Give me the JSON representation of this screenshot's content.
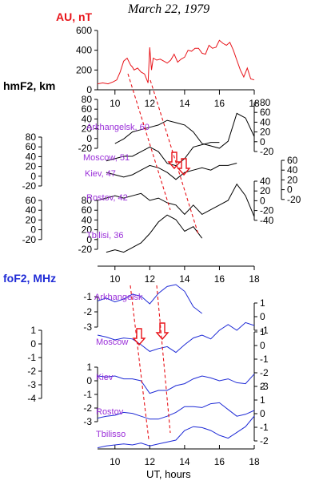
{
  "title": "March 22, 1979",
  "colors": {
    "au": "#e8141a",
    "hmf2": "#000000",
    "fof2": "#1f2bd6",
    "station_label": "#9b30d9",
    "hmf2_label": "#000000",
    "fof2_label": "#1f2bd6",
    "arrow": "#e8141a"
  },
  "chart_data": [
    {
      "type": "line",
      "panel": "AU",
      "ylabel": "AU, nT",
      "x_range": [
        9,
        18
      ],
      "ylim": [
        0,
        600
      ],
      "yticks": [
        0,
        200,
        400,
        600
      ],
      "series": [
        {
          "x": [
            9.0,
            9.3,
            9.6,
            9.9,
            10.1,
            10.3,
            10.5,
            10.7,
            10.9,
            11.0,
            11.1,
            11.3,
            11.5,
            11.7,
            11.9,
            12.0,
            12.1,
            12.2,
            12.4,
            12.6,
            12.8,
            13.0,
            13.2,
            13.4,
            13.6,
            13.8,
            14.0,
            14.2,
            14.4,
            14.6,
            14.8,
            15.0,
            15.2,
            15.4,
            15.6,
            15.8,
            16.0,
            16.2,
            16.4,
            16.6,
            16.8,
            17.0,
            17.2,
            17.4,
            17.6,
            17.8,
            18.0
          ],
          "values": [
            60,
            70,
            60,
            80,
            100,
            180,
            290,
            320,
            250,
            230,
            200,
            220,
            180,
            160,
            70,
            430,
            200,
            320,
            300,
            310,
            290,
            270,
            300,
            360,
            280,
            310,
            330,
            400,
            390,
            420,
            420,
            370,
            360,
            450,
            420,
            430,
            500,
            470,
            450,
            480,
            400,
            300,
            200,
            130,
            220,
            110,
            100
          ]
        }
      ]
    },
    {
      "type": "line",
      "panel": "hmF2",
      "ylabel": "hmF2, km",
      "x_range": [
        9,
        18
      ],
      "unit_scale": "20 km tick spacing",
      "stations": [
        {
          "name": "Arkhangelsk, 60",
          "left_ticks": [
            "80",
            "60",
            "40",
            "20",
            "0",
            "-20"
          ],
          "right_ticks": [
            "80",
            "60",
            "40",
            "20",
            "0",
            "-20"
          ],
          "x": [
            10.0,
            10.5,
            11.0,
            11.5,
            12.0,
            12.5,
            13.0,
            13.5,
            14.0,
            14.5,
            15.0,
            15.5,
            16.0,
            16.5,
            17.0,
            17.5,
            18.0
          ],
          "values": [
            5,
            15,
            30,
            35,
            40,
            45,
            55,
            50,
            45,
            30,
            5,
            0,
            -5,
            10,
            70,
            60,
            20
          ]
        },
        {
          "name": "Moscow, 51",
          "left_ticks": [
            "80",
            "60",
            "40",
            "20",
            "0",
            "-20"
          ],
          "x": [
            9.5,
            10.0,
            10.5,
            11.0,
            11.5,
            12.0,
            12.5,
            13.0,
            13.5,
            14.0,
            14.5,
            15.0,
            15.5,
            16.0
          ],
          "values": [
            -10,
            -5,
            0,
            0,
            10,
            20,
            10,
            -15,
            -20,
            -5,
            20,
            25,
            30,
            30
          ]
        },
        {
          "name": "Kiev, 47",
          "right_ticks": [
            "60",
            "40",
            "20",
            "0",
            "-20"
          ],
          "x": [
            9.5,
            10.0,
            10.5,
            11.0,
            11.5,
            12.0,
            12.5,
            13.0,
            13.5,
            14.0,
            14.5,
            15.0,
            15.5,
            16.0,
            16.5,
            17.0
          ],
          "values": [
            5,
            0,
            -5,
            0,
            10,
            20,
            15,
            5,
            -10,
            5,
            10,
            15,
            10,
            20,
            20,
            25
          ]
        },
        {
          "name": "Rostov, 42",
          "left_ticks": [
            "80",
            "60",
            "40",
            "20",
            "0",
            "-20"
          ],
          "right_ticks": [
            "40",
            "20",
            "0",
            "-20",
            "-40"
          ],
          "x": [
            9.0,
            9.5,
            10.0,
            10.5,
            11.0,
            11.5,
            12.0,
            12.5,
            13.0,
            13.5,
            14.0,
            14.5,
            15.0,
            15.5,
            16.0,
            16.5,
            17.0,
            17.5,
            18.0
          ],
          "values": [
            0,
            5,
            10,
            5,
            10,
            15,
            0,
            5,
            -5,
            -10,
            -30,
            -10,
            -30,
            -20,
            -10,
            0,
            35,
            10,
            -35
          ]
        },
        {
          "name": "Tbilisi, 36",
          "left_ticks": [
            "60",
            "40",
            "20",
            "0",
            "-20"
          ],
          "x": [
            9.5,
            10.0,
            10.5,
            11.0,
            11.5,
            12.0,
            12.5,
            13.0,
            13.5,
            14.0,
            14.5,
            15.0
          ],
          "values": [
            -20,
            -15,
            -20,
            -10,
            0,
            20,
            45,
            60,
            50,
            25,
            35,
            10
          ]
        }
      ]
    },
    {
      "type": "line",
      "panel": "foF2",
      "ylabel": "foF2, MHz",
      "x_range": [
        9,
        18
      ],
      "xticks": [
        10,
        12,
        14,
        16,
        18
      ],
      "xlabel": "UT, hours",
      "stations": [
        {
          "name": "Arkhangelsk",
          "left_ticks": [
            "-1",
            "-2",
            "-3"
          ],
          "right_ticks": [
            "1",
            "0",
            "-1"
          ],
          "x": [
            9.0,
            9.5,
            10.0,
            10.5,
            11.0,
            11.5,
            12.0,
            12.5,
            13.0,
            13.5,
            14.0,
            14.5,
            15.0
          ],
          "values": [
            -2.2,
            -1.9,
            -2.3,
            -2.0,
            -1.5,
            -1.7,
            -2.5,
            -1.4,
            -0.7,
            -0.5,
            -1.2,
            -2.8,
            -3.5
          ]
        },
        {
          "name": "Moscow",
          "left_ticks": [
            "1",
            "0",
            "-1",
            "-2",
            "-3",
            "-4"
          ],
          "right_ticks": [
            "1",
            "0",
            "-1",
            "-2",
            "-3"
          ],
          "x": [
            9.0,
            9.5,
            10.0,
            10.5,
            11.0,
            11.5,
            12.0,
            12.5,
            13.0,
            13.5,
            14.0,
            14.5,
            15.0,
            15.5,
            16.0,
            16.5,
            17.0,
            17.5,
            18.0
          ],
          "values": [
            -0.5,
            -0.7,
            -1.0,
            -0.8,
            -0.9,
            -1.5,
            -2.2,
            -1.9,
            -1.7,
            -2.3,
            -1.5,
            -0.8,
            -0.5,
            -0.9,
            0.0,
            0.6,
            0.0,
            0.8,
            0.5
          ]
        },
        {
          "name": "Kiev",
          "right_ticks": [
            "1",
            "0",
            "-1",
            "-2",
            "-3"
          ],
          "x": [
            9.0,
            9.5,
            10.0,
            10.5,
            11.0,
            11.5,
            12.0,
            12.5,
            13.0,
            13.5,
            14.0,
            14.5,
            15.0,
            15.5,
            16.0,
            16.5,
            17.0,
            17.5,
            18.0
          ],
          "values": [
            -0.5,
            -0.6,
            -0.5,
            -0.8,
            -0.8,
            -1.0,
            -2.3,
            -2.0,
            -2.0,
            -1.5,
            -1.3,
            -0.8,
            -0.5,
            -0.7,
            -1.0,
            -0.8,
            -1.2,
            -1.3,
            -0.3
          ]
        },
        {
          "name": "Rostov",
          "left_ticks": [
            "1",
            "0",
            "-1",
            "-2",
            "-3"
          ],
          "x": [
            9.0,
            9.5,
            10.0,
            10.5,
            11.0,
            11.5,
            12.0,
            12.5,
            13.0,
            13.5,
            14.0,
            14.5,
            15.0,
            15.5,
            16.0,
            16.5,
            17.0,
            17.5,
            18.0
          ],
          "values": [
            -1.8,
            -1.6,
            -1.5,
            -1.2,
            -1.3,
            -1.6,
            -1.9,
            -1.9,
            -1.6,
            -1.2,
            -0.6,
            -0.6,
            -0.7,
            -0.3,
            -0.2,
            -0.9,
            -1.6,
            -1.4,
            -1.0
          ]
        },
        {
          "name": "Tbilisso",
          "right_ticks": [
            "2",
            "1",
            "0",
            "-1",
            "-2"
          ],
          "x": [
            9.0,
            9.5,
            10.0,
            10.5,
            11.0,
            11.5,
            12.0,
            12.5,
            13.0,
            13.5,
            14.0,
            14.5,
            15.0,
            15.5,
            16.0,
            16.5,
            17.0,
            17.5,
            18.0
          ],
          "values": [
            -2.8,
            -2.6,
            -2.5,
            -2.4,
            -2.5,
            -2.3,
            -2.6,
            -2.4,
            -2.2,
            -2.0,
            -1.0,
            -0.6,
            -0.7,
            -1.0,
            -1.5,
            -1.8,
            -1.2,
            -0.6,
            0.5
          ]
        }
      ]
    }
  ]
}
